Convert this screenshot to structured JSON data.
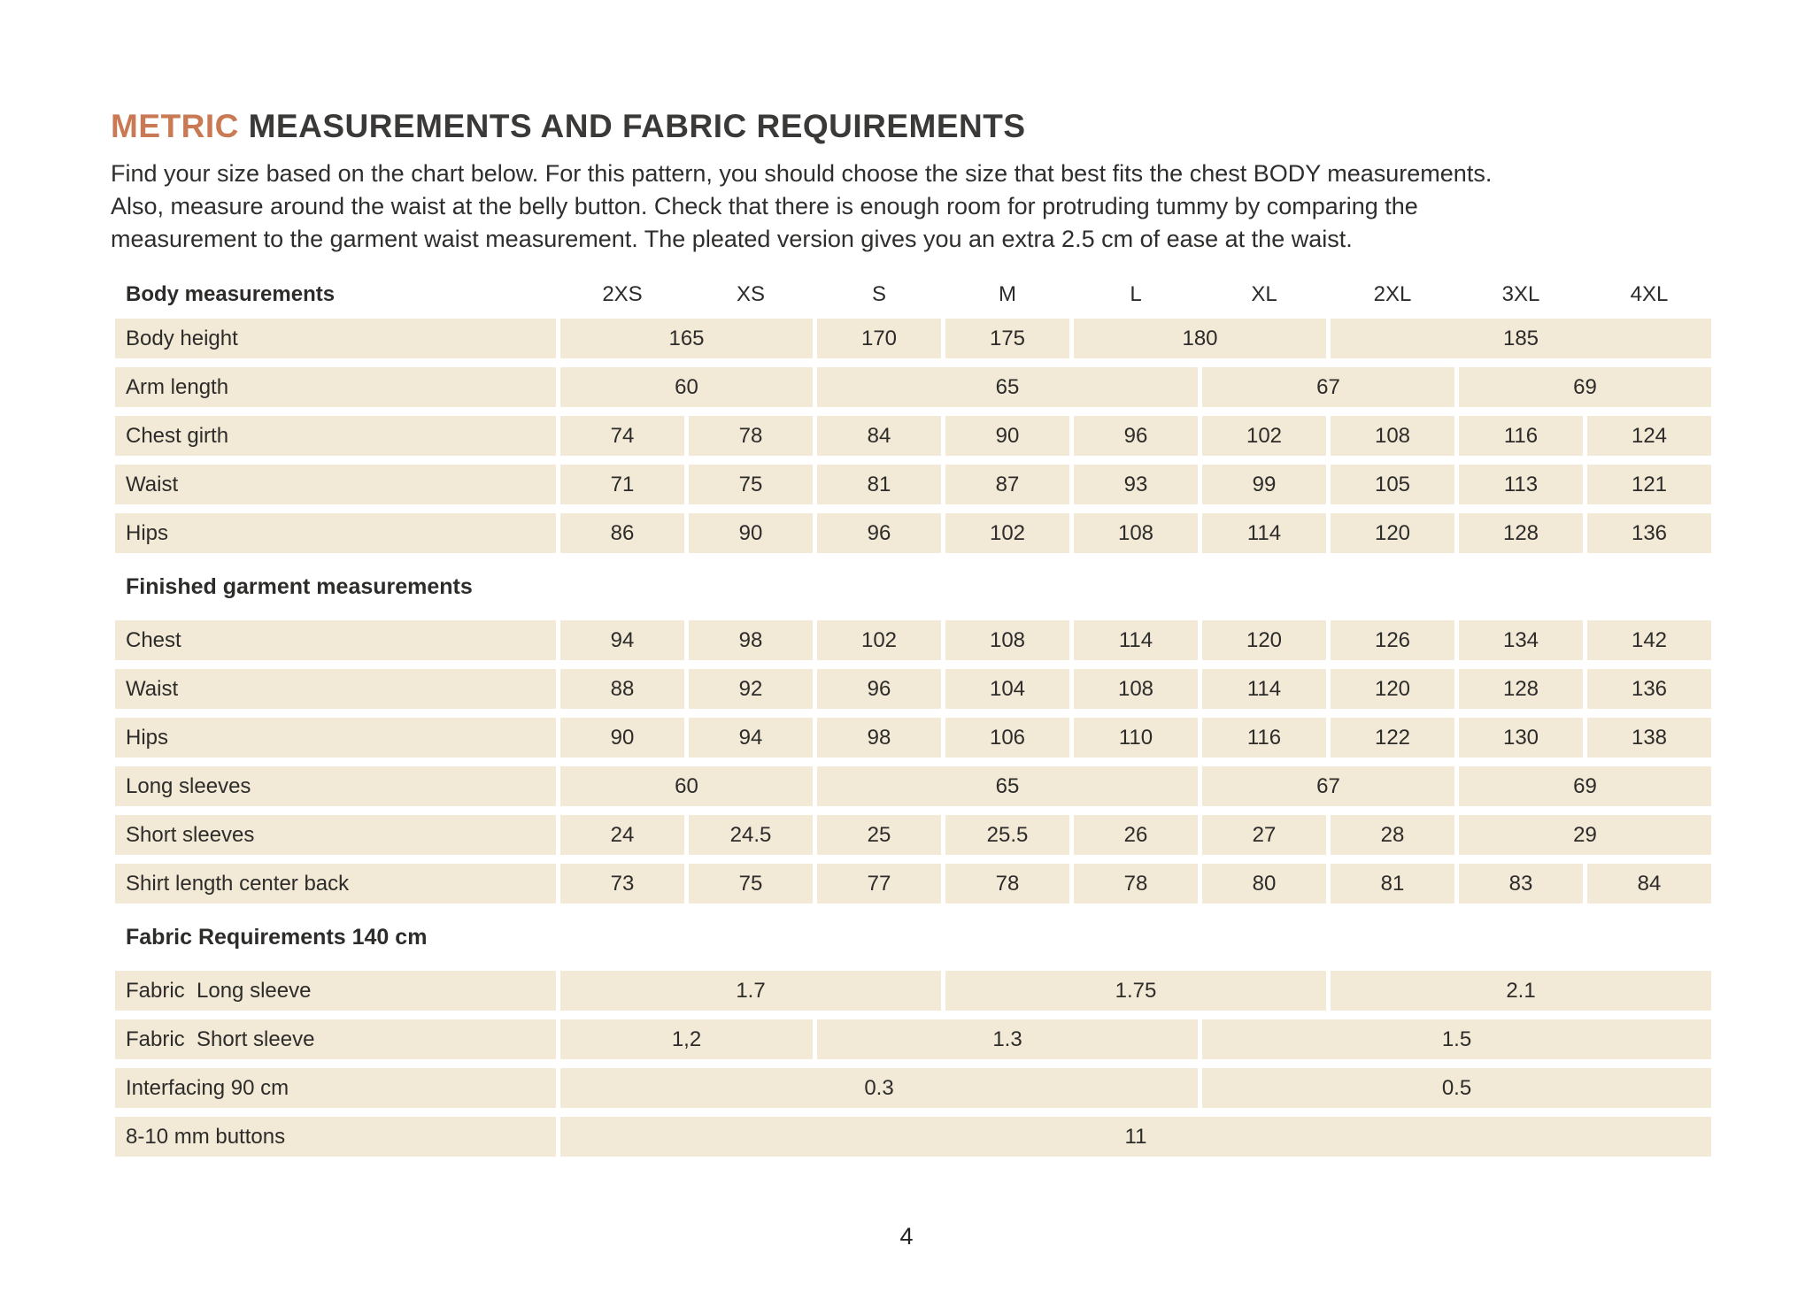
{
  "colors": {
    "accent": "#c97a54",
    "cell_bg": "#f2e9d6"
  },
  "header": {
    "title_accent": "METRIC",
    "title_rest": " MEASUREMENTS AND FABRIC REQUIREMENTS",
    "intro_lines": [
      "Find your size based on the chart below. For this pattern, you should choose the size that best fits the chest BODY measurements.",
      "Also, measure around the waist at the belly button. Check that there is enough room for protruding tummy by comparing the",
      "measurement to the garment waist measurement. The pleated version gives you an extra 2.5 cm of ease at the waist."
    ]
  },
  "table": {
    "header": {
      "label": "Body measurements",
      "sizes": [
        "2XS",
        "XS",
        "S",
        "M",
        "L",
        "XL",
        "2XL",
        "3XL",
        "4XL"
      ]
    },
    "rows": [
      {
        "type": "data",
        "label": "Body height",
        "cells": [
          [
            "165",
            2
          ],
          [
            "170",
            1
          ],
          [
            "175",
            1
          ],
          [
            "180",
            2
          ],
          [
            "185",
            3
          ]
        ]
      },
      {
        "type": "data",
        "label": "Arm length",
        "cells": [
          [
            "60",
            2
          ],
          [
            "65",
            3
          ],
          [
            "67",
            2
          ],
          [
            "69",
            2
          ]
        ]
      },
      {
        "type": "data",
        "label": "Chest girth",
        "cells": [
          [
            "74",
            1
          ],
          [
            "78",
            1
          ],
          [
            "84",
            1
          ],
          [
            "90",
            1
          ],
          [
            "96",
            1
          ],
          [
            "102",
            1
          ],
          [
            "108",
            1
          ],
          [
            "116",
            1
          ],
          [
            "124",
            1
          ]
        ]
      },
      {
        "type": "data",
        "label": "Waist",
        "cells": [
          [
            "71",
            1
          ],
          [
            "75",
            1
          ],
          [
            "81",
            1
          ],
          [
            "87",
            1
          ],
          [
            "93",
            1
          ],
          [
            "99",
            1
          ],
          [
            "105",
            1
          ],
          [
            "113",
            1
          ],
          [
            "121",
            1
          ]
        ]
      },
      {
        "type": "data",
        "label": "Hips",
        "cells": [
          [
            "86",
            1
          ],
          [
            "90",
            1
          ],
          [
            "96",
            1
          ],
          [
            "102",
            1
          ],
          [
            "108",
            1
          ],
          [
            "114",
            1
          ],
          [
            "120",
            1
          ],
          [
            "128",
            1
          ],
          [
            "136",
            1
          ]
        ]
      },
      {
        "type": "section",
        "label": "Finished garment measurements"
      },
      {
        "type": "data",
        "label": "Chest",
        "cells": [
          [
            "94",
            1
          ],
          [
            "98",
            1
          ],
          [
            "102",
            1
          ],
          [
            "108",
            1
          ],
          [
            "114",
            1
          ],
          [
            "120",
            1
          ],
          [
            "126",
            1
          ],
          [
            "134",
            1
          ],
          [
            "142",
            1
          ]
        ]
      },
      {
        "type": "data",
        "label": "Waist",
        "cells": [
          [
            "88",
            1
          ],
          [
            "92",
            1
          ],
          [
            "96",
            1
          ],
          [
            "104",
            1
          ],
          [
            "108",
            1
          ],
          [
            "114",
            1
          ],
          [
            "120",
            1
          ],
          [
            "128",
            1
          ],
          [
            "136",
            1
          ]
        ]
      },
      {
        "type": "data",
        "label": "Hips",
        "cells": [
          [
            "90",
            1
          ],
          [
            "94",
            1
          ],
          [
            "98",
            1
          ],
          [
            "106",
            1
          ],
          [
            "110",
            1
          ],
          [
            "116",
            1
          ],
          [
            "122",
            1
          ],
          [
            "130",
            1
          ],
          [
            "138",
            1
          ]
        ]
      },
      {
        "type": "data",
        "label": "Long sleeves",
        "cells": [
          [
            "60",
            2
          ],
          [
            "65",
            3
          ],
          [
            "67",
            2
          ],
          [
            "69",
            2
          ]
        ]
      },
      {
        "type": "data",
        "label": "Short sleeves",
        "cells": [
          [
            "24",
            1
          ],
          [
            "24.5",
            1
          ],
          [
            "25",
            1
          ],
          [
            "25.5",
            1
          ],
          [
            "26",
            1
          ],
          [
            "27",
            1
          ],
          [
            "28",
            1
          ],
          [
            "29",
            2
          ]
        ]
      },
      {
        "type": "data",
        "label": "Shirt length center back",
        "cells": [
          [
            "73",
            1
          ],
          [
            "75",
            1
          ],
          [
            "77",
            1
          ],
          [
            "78",
            1
          ],
          [
            "78",
            1
          ],
          [
            "80",
            1
          ],
          [
            "81",
            1
          ],
          [
            "83",
            1
          ],
          [
            "84",
            1
          ]
        ]
      },
      {
        "type": "section",
        "label": "Fabric Requirements 140 cm"
      },
      {
        "type": "data",
        "label": "Fabric  Long sleeve",
        "cells": [
          [
            "1.7",
            3
          ],
          [
            "1.75",
            3
          ],
          [
            "2.1",
            3
          ]
        ]
      },
      {
        "type": "data",
        "label": "Fabric  Short sleeve",
        "cells": [
          [
            "1,2",
            2
          ],
          [
            "1.3",
            3
          ],
          [
            "1.5",
            4
          ]
        ]
      },
      {
        "type": "data",
        "label": "Interfacing 90 cm",
        "cells": [
          [
            "0.3",
            5
          ],
          [
            "0.5",
            4
          ]
        ]
      },
      {
        "type": "data",
        "label": "8-10 mm buttons",
        "cells": [
          [
            "11",
            9
          ]
        ]
      }
    ]
  },
  "footer": {
    "page_number": "4"
  }
}
